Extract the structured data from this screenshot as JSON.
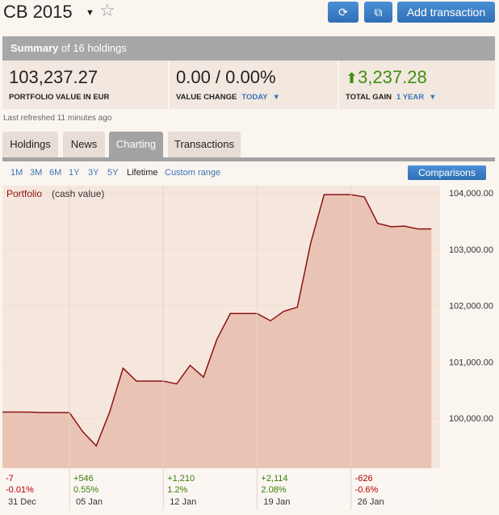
{
  "header": {
    "title": "CB 2015",
    "add_button": "Add transaction"
  },
  "summary": {
    "label": "Summary",
    "text": "of 16 holdings"
  },
  "stats": [
    {
      "value": "103,237.27",
      "label": "PORTFOLIO VALUE IN EUR"
    },
    {
      "value": "0.00 / 0.00%",
      "label": "VALUE CHANGE",
      "option": "TODAY"
    },
    {
      "value": "3,237.28",
      "label": "TOTAL GAIN",
      "option": "1 YEAR"
    }
  ],
  "refreshed": "Last refreshed 11 minutes ago",
  "tabs": [
    "Holdings",
    "News",
    "Charting",
    "Transactions"
  ],
  "ranges": [
    "1M",
    "3M",
    "6M",
    "1Y",
    "3Y",
    "5Y",
    "Lifetime",
    "Custom range"
  ],
  "comparisons": "Comparisons",
  "chart_data": {
    "type": "area",
    "title": "Portfolio",
    "subtitle": "(cash value)",
    "categories": [
      "31 Dec",
      null,
      null,
      null,
      null,
      "05 Jan",
      null,
      null,
      null,
      null,
      null,
      null,
      "12 Jan",
      null,
      null,
      null,
      null,
      null,
      null,
      "19 Jan",
      null,
      null,
      null,
      null,
      null,
      null,
      "26 Jan",
      null,
      null,
      null,
      null,
      null,
      null
    ],
    "values": [
      100110,
      100110,
      100110,
      100100,
      100100,
      100100,
      99760,
      99510,
      100110,
      100890,
      100660,
      100660,
      100660,
      100610,
      100940,
      100730,
      101400,
      101860,
      101860,
      101860,
      101730,
      101900,
      101970,
      103110,
      103970,
      103970,
      103970,
      103930,
      103460,
      103400,
      103410,
      103360,
      103360
    ],
    "period_change": [
      "-7",
      null,
      null,
      null,
      null,
      "+546",
      null,
      null,
      null,
      null,
      null,
      null,
      "+1,210",
      null,
      null,
      null,
      null,
      null,
      null,
      "+2,114",
      null,
      null,
      null,
      null,
      null,
      null,
      "-626",
      null,
      null,
      null,
      null,
      null,
      null
    ],
    "period_change_percent": [
      "-0.01%",
      null,
      null,
      null,
      null,
      "0.55%",
      null,
      null,
      null,
      null,
      null,
      null,
      "1.2%",
      null,
      null,
      null,
      null,
      null,
      null,
      "2.08%",
      null,
      null,
      null,
      null,
      null,
      null,
      "-0.6%",
      null,
      null,
      null,
      null,
      null,
      null
    ],
    "color": "#8b1414",
    "fill": "#e9c4b4",
    "ylim": [
      99114,
      104129
    ],
    "yticks": [
      {
        "value": 100000,
        "label": "100,000.00"
      },
      {
        "value": 101000,
        "label": "101,000.00"
      },
      {
        "value": 102000,
        "label": "102,000.00"
      },
      {
        "value": 103000,
        "label": "103,000.00"
      },
      {
        "value": 104000,
        "label": "104,000.00"
      }
    ],
    "grid": true
  }
}
